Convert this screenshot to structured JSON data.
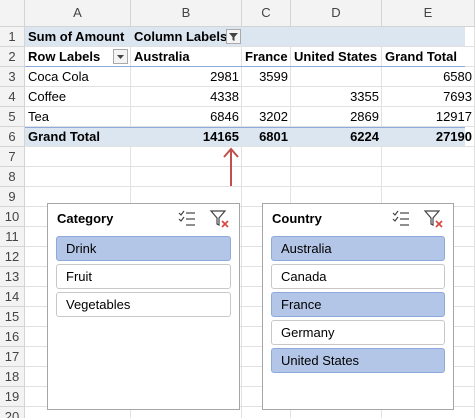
{
  "sheet": {
    "columns": [
      "A",
      "B",
      "C",
      "D",
      "E"
    ],
    "rows": [
      1,
      2,
      3,
      4,
      5,
      6,
      7,
      8,
      9,
      10,
      11,
      12,
      13,
      14,
      15,
      16,
      17,
      18,
      19,
      20
    ]
  },
  "pivot": {
    "title_row": [
      "Sum of Amount",
      "Column Labels"
    ],
    "header": [
      "Row Labels",
      "Australia",
      "France",
      "United States",
      "Grand Total"
    ],
    "rows": [
      {
        "label": "Coca Cola",
        "values": [
          2981,
          3599,
          null,
          6580
        ]
      },
      {
        "label": "Coffee",
        "values": [
          4338,
          null,
          3355,
          7693
        ]
      },
      {
        "label": "Tea",
        "values": [
          6846,
          3202,
          2869,
          12917
        ]
      }
    ],
    "total": {
      "label": "Grand Total",
      "values": [
        14165,
        6801,
        6224,
        27190
      ]
    }
  },
  "slicers": [
    {
      "title": "Category",
      "items": [
        {
          "label": "Drink",
          "selected": true
        },
        {
          "label": "Fruit",
          "selected": false
        },
        {
          "label": "Vegetables",
          "selected": false
        }
      ]
    },
    {
      "title": "Country",
      "items": [
        {
          "label": "Australia",
          "selected": true
        },
        {
          "label": "Canada",
          "selected": false
        },
        {
          "label": "France",
          "selected": true
        },
        {
          "label": "Germany",
          "selected": false
        },
        {
          "label": "United States",
          "selected": true
        }
      ]
    }
  ]
}
